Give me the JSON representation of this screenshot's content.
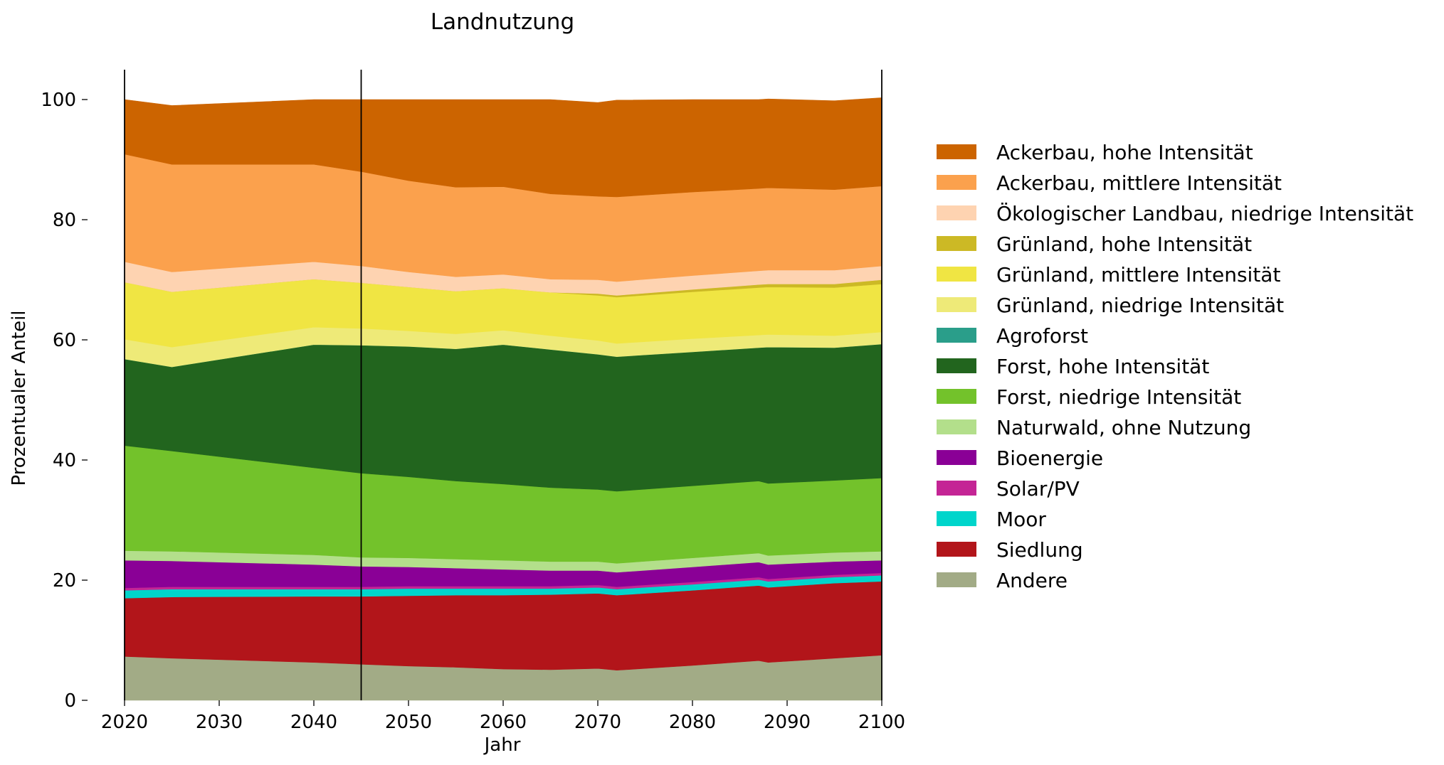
{
  "chart_data": {
    "type": "area",
    "stacked": true,
    "title": "Landnutzung",
    "xlabel": "Jahr",
    "ylabel": "Prozentualer Anteil",
    "xlim": [
      2020,
      2100
    ],
    "ylim": [
      0,
      100
    ],
    "xticks": [
      2020,
      2030,
      2040,
      2050,
      2060,
      2070,
      2080,
      2090,
      2100
    ],
    "yticks": [
      0,
      20,
      40,
      60,
      80,
      100
    ],
    "vlines": [
      2020,
      2045,
      2100
    ],
    "grid": false,
    "legend_position": "right",
    "x": [
      2020,
      2025,
      2040,
      2045,
      2050,
      2055,
      2060,
      2065,
      2070,
      2072,
      2080,
      2087,
      2088,
      2095,
      2100
    ],
    "series": [
      {
        "name": "Andere",
        "color": "#a2ab86",
        "values": [
          7.3,
          7.0,
          6.3,
          6.0,
          5.7,
          5.5,
          5.2,
          5.1,
          5.3,
          5.0,
          5.8,
          6.6,
          6.3,
          7.0,
          7.5
        ]
      },
      {
        "name": "Siedlung",
        "color": "#b2151a",
        "values": [
          9.7,
          10.2,
          11.0,
          11.3,
          11.7,
          12.0,
          12.3,
          12.5,
          12.5,
          12.5,
          12.5,
          12.5,
          12.5,
          12.5,
          12.3
        ]
      },
      {
        "name": "Moor",
        "color": "#00d5cb",
        "values": [
          1.3,
          1.3,
          1.2,
          1.2,
          1.2,
          1.1,
          1.1,
          1.0,
          1.0,
          1.0,
          1.0,
          1.0,
          1.0,
          1.0,
          1.0
        ]
      },
      {
        "name": "Solar/PV",
        "color": "#c42595",
        "values": [
          0.4,
          0.4,
          0.4,
          0.4,
          0.4,
          0.4,
          0.4,
          0.4,
          0.4,
          0.4,
          0.4,
          0.4,
          0.4,
          0.4,
          0.4
        ]
      },
      {
        "name": "Bioenergie",
        "color": "#8a0096",
        "values": [
          4.6,
          4.3,
          3.7,
          3.4,
          3.2,
          3.0,
          2.8,
          2.6,
          2.4,
          2.4,
          2.5,
          2.5,
          2.4,
          2.2,
          2.1
        ]
      },
      {
        "name": "Naturwald, ohne Nutzung",
        "color": "#b3df8b",
        "values": [
          1.6,
          1.6,
          1.6,
          1.5,
          1.5,
          1.5,
          1.5,
          1.5,
          1.5,
          1.5,
          1.5,
          1.5,
          1.5,
          1.5,
          1.5
        ]
      },
      {
        "name": "Forst, niedrige Intensität",
        "color": "#73c22b",
        "values": [
          17.5,
          16.7,
          14.5,
          14.0,
          13.5,
          13.0,
          12.7,
          12.3,
          12.0,
          12.0,
          12.0,
          12.0,
          12.0,
          12.0,
          12.2
        ]
      },
      {
        "name": "Forst, hohe Intensität",
        "color": "#22651e",
        "values": [
          14.4,
          14.0,
          20.5,
          21.3,
          21.7,
          22.0,
          23.2,
          23.0,
          22.5,
          22.4,
          22.3,
          22.2,
          22.7,
          22.1,
          22.3
        ]
      },
      {
        "name": "Agroforst",
        "color": "#2a9e8a",
        "values": [
          0,
          0,
          0,
          0,
          0,
          0,
          0,
          0,
          0,
          0,
          0,
          0,
          0,
          0,
          0
        ]
      },
      {
        "name": "Grünland, niedrige Intensität",
        "color": "#eeea78",
        "values": [
          3.3,
          3.3,
          2.9,
          2.8,
          2.6,
          2.5,
          2.4,
          2.3,
          2.3,
          2.2,
          2.2,
          2.1,
          2.1,
          2.0,
          2.0
        ]
      },
      {
        "name": "Grünland, mittlere Intensität",
        "color": "#f0e543",
        "values": [
          9.5,
          9.2,
          8.0,
          7.6,
          7.3,
          7.1,
          7.0,
          7.2,
          7.5,
          7.7,
          7.8,
          7.9,
          7.9,
          8.0,
          8.0
        ]
      },
      {
        "name": "Grünland, hohe Intensität",
        "color": "#ccb925",
        "values": [
          0,
          0,
          0,
          0,
          0,
          0,
          0,
          0,
          0.3,
          0.3,
          0.4,
          0.5,
          0.5,
          0.6,
          0.7
        ]
      },
      {
        "name": "Ökologischer Landbau, niedrige Intensität",
        "color": "#fed3b1",
        "values": [
          3.4,
          3.3,
          2.9,
          2.8,
          2.5,
          2.4,
          2.3,
          2.2,
          2.3,
          2.3,
          2.3,
          2.3,
          2.3,
          2.3,
          2.3
        ]
      },
      {
        "name": "Ackerbau, mittlere Intensität",
        "color": "#fba14d",
        "values": [
          17.9,
          17.9,
          16.2,
          15.7,
          15.2,
          14.9,
          14.6,
          14.2,
          13.9,
          14.1,
          13.9,
          13.7,
          13.7,
          13.4,
          13.3
        ]
      },
      {
        "name": "Ackerbau, hohe Intensität",
        "color": "#cc6400",
        "values": [
          9.1,
          9.8,
          10.8,
          12.0,
          13.5,
          14.6,
          14.5,
          15.7,
          15.6,
          16.1,
          15.4,
          14.8,
          14.8,
          14.8,
          14.7
        ]
      }
    ]
  }
}
